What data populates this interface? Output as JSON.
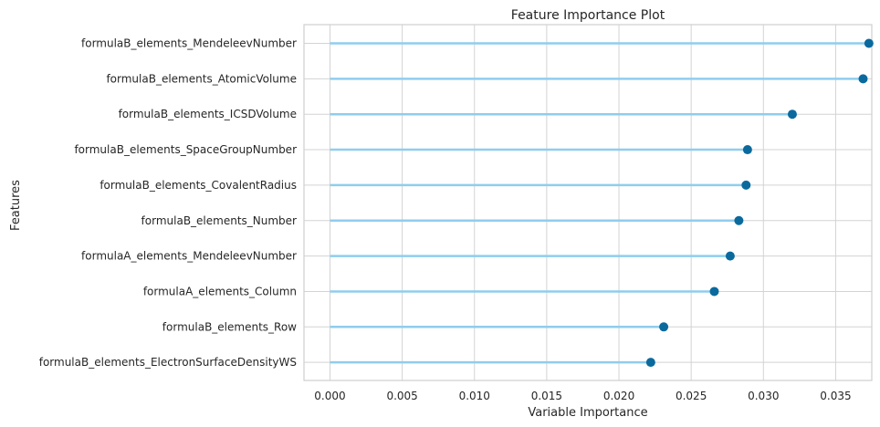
{
  "chart_data": {
    "type": "lollipop",
    "title": "Feature Importance Plot",
    "xlabel": "Variable Importance",
    "ylabel": "Features",
    "xlim": [
      -0.0018,
      0.0375
    ],
    "xticks": [
      "0.000",
      "0.005",
      "0.010",
      "0.015",
      "0.020",
      "0.025",
      "0.030",
      "0.035"
    ],
    "xtick_values": [
      0.0,
      0.005,
      0.01,
      0.015,
      0.02,
      0.025,
      0.03,
      0.035
    ],
    "grid": true,
    "categories": [
      "formulaB_elements_MendeleevNumber",
      "formulaB_elements_AtomicVolume",
      "formulaB_elements_ICSDVolume",
      "formulaB_elements_SpaceGroupNumber",
      "formulaB_elements_CovalentRadius",
      "formulaB_elements_Number",
      "formulaA_elements_MendeleevNumber",
      "formulaA_elements_Column",
      "formulaB_elements_Row",
      "formulaB_elements_ElectronSurfaceDensityWS"
    ],
    "values": [
      0.0373,
      0.0369,
      0.032,
      0.0289,
      0.0288,
      0.0283,
      0.0277,
      0.0266,
      0.0231,
      0.0222
    ]
  },
  "colors": {
    "stem": "#8fcdee",
    "marker": "#0a6a9e",
    "grid": "#d3d3d3",
    "frame": "#cfcfcf",
    "background": "#ffffff",
    "text": "#262626"
  }
}
